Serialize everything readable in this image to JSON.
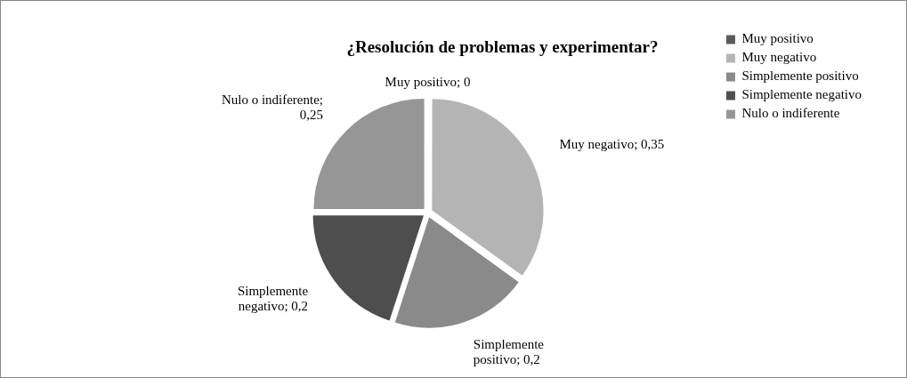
{
  "chart_data": {
    "type": "pie",
    "title": "¿Resolución de problemas y experimentar?",
    "categories": [
      "Muy positivo",
      "Muy negativo",
      "Simplemente positivo",
      "Simplemente negativo",
      "Nulo o indiferente"
    ],
    "values": [
      0,
      0.35,
      0.2,
      0.2,
      0.25
    ],
    "value_labels": [
      "Muy positivo; 0",
      "Muy negativo; 0,35",
      "Simplemente positivo; 0,2",
      "Simplemente negativo; 0,2",
      "Nulo o indiferente; 0,25"
    ],
    "colors": [
      "#5a5a5a",
      "#b4b4b4",
      "#8a8a8a",
      "#4e4e4e",
      "#969696"
    ],
    "legend": "top right"
  }
}
